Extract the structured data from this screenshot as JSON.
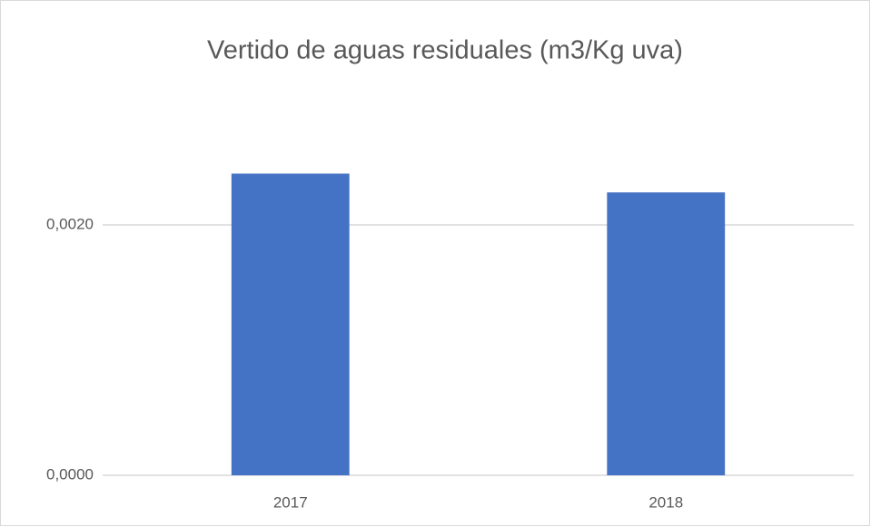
{
  "chart_data": {
    "type": "bar",
    "title": "Vertido de aguas residuales (m3/Kg uva)",
    "categories": [
      "2017",
      "2018"
    ],
    "values": [
      0.00241,
      0.00226
    ],
    "color": "#4472c4",
    "ylim": [
      0,
      0.003
    ],
    "yticks": [
      {
        "value": 0,
        "label": "0,0000"
      },
      {
        "value": 0.002,
        "label": "0,0020"
      }
    ],
    "grid": true
  }
}
